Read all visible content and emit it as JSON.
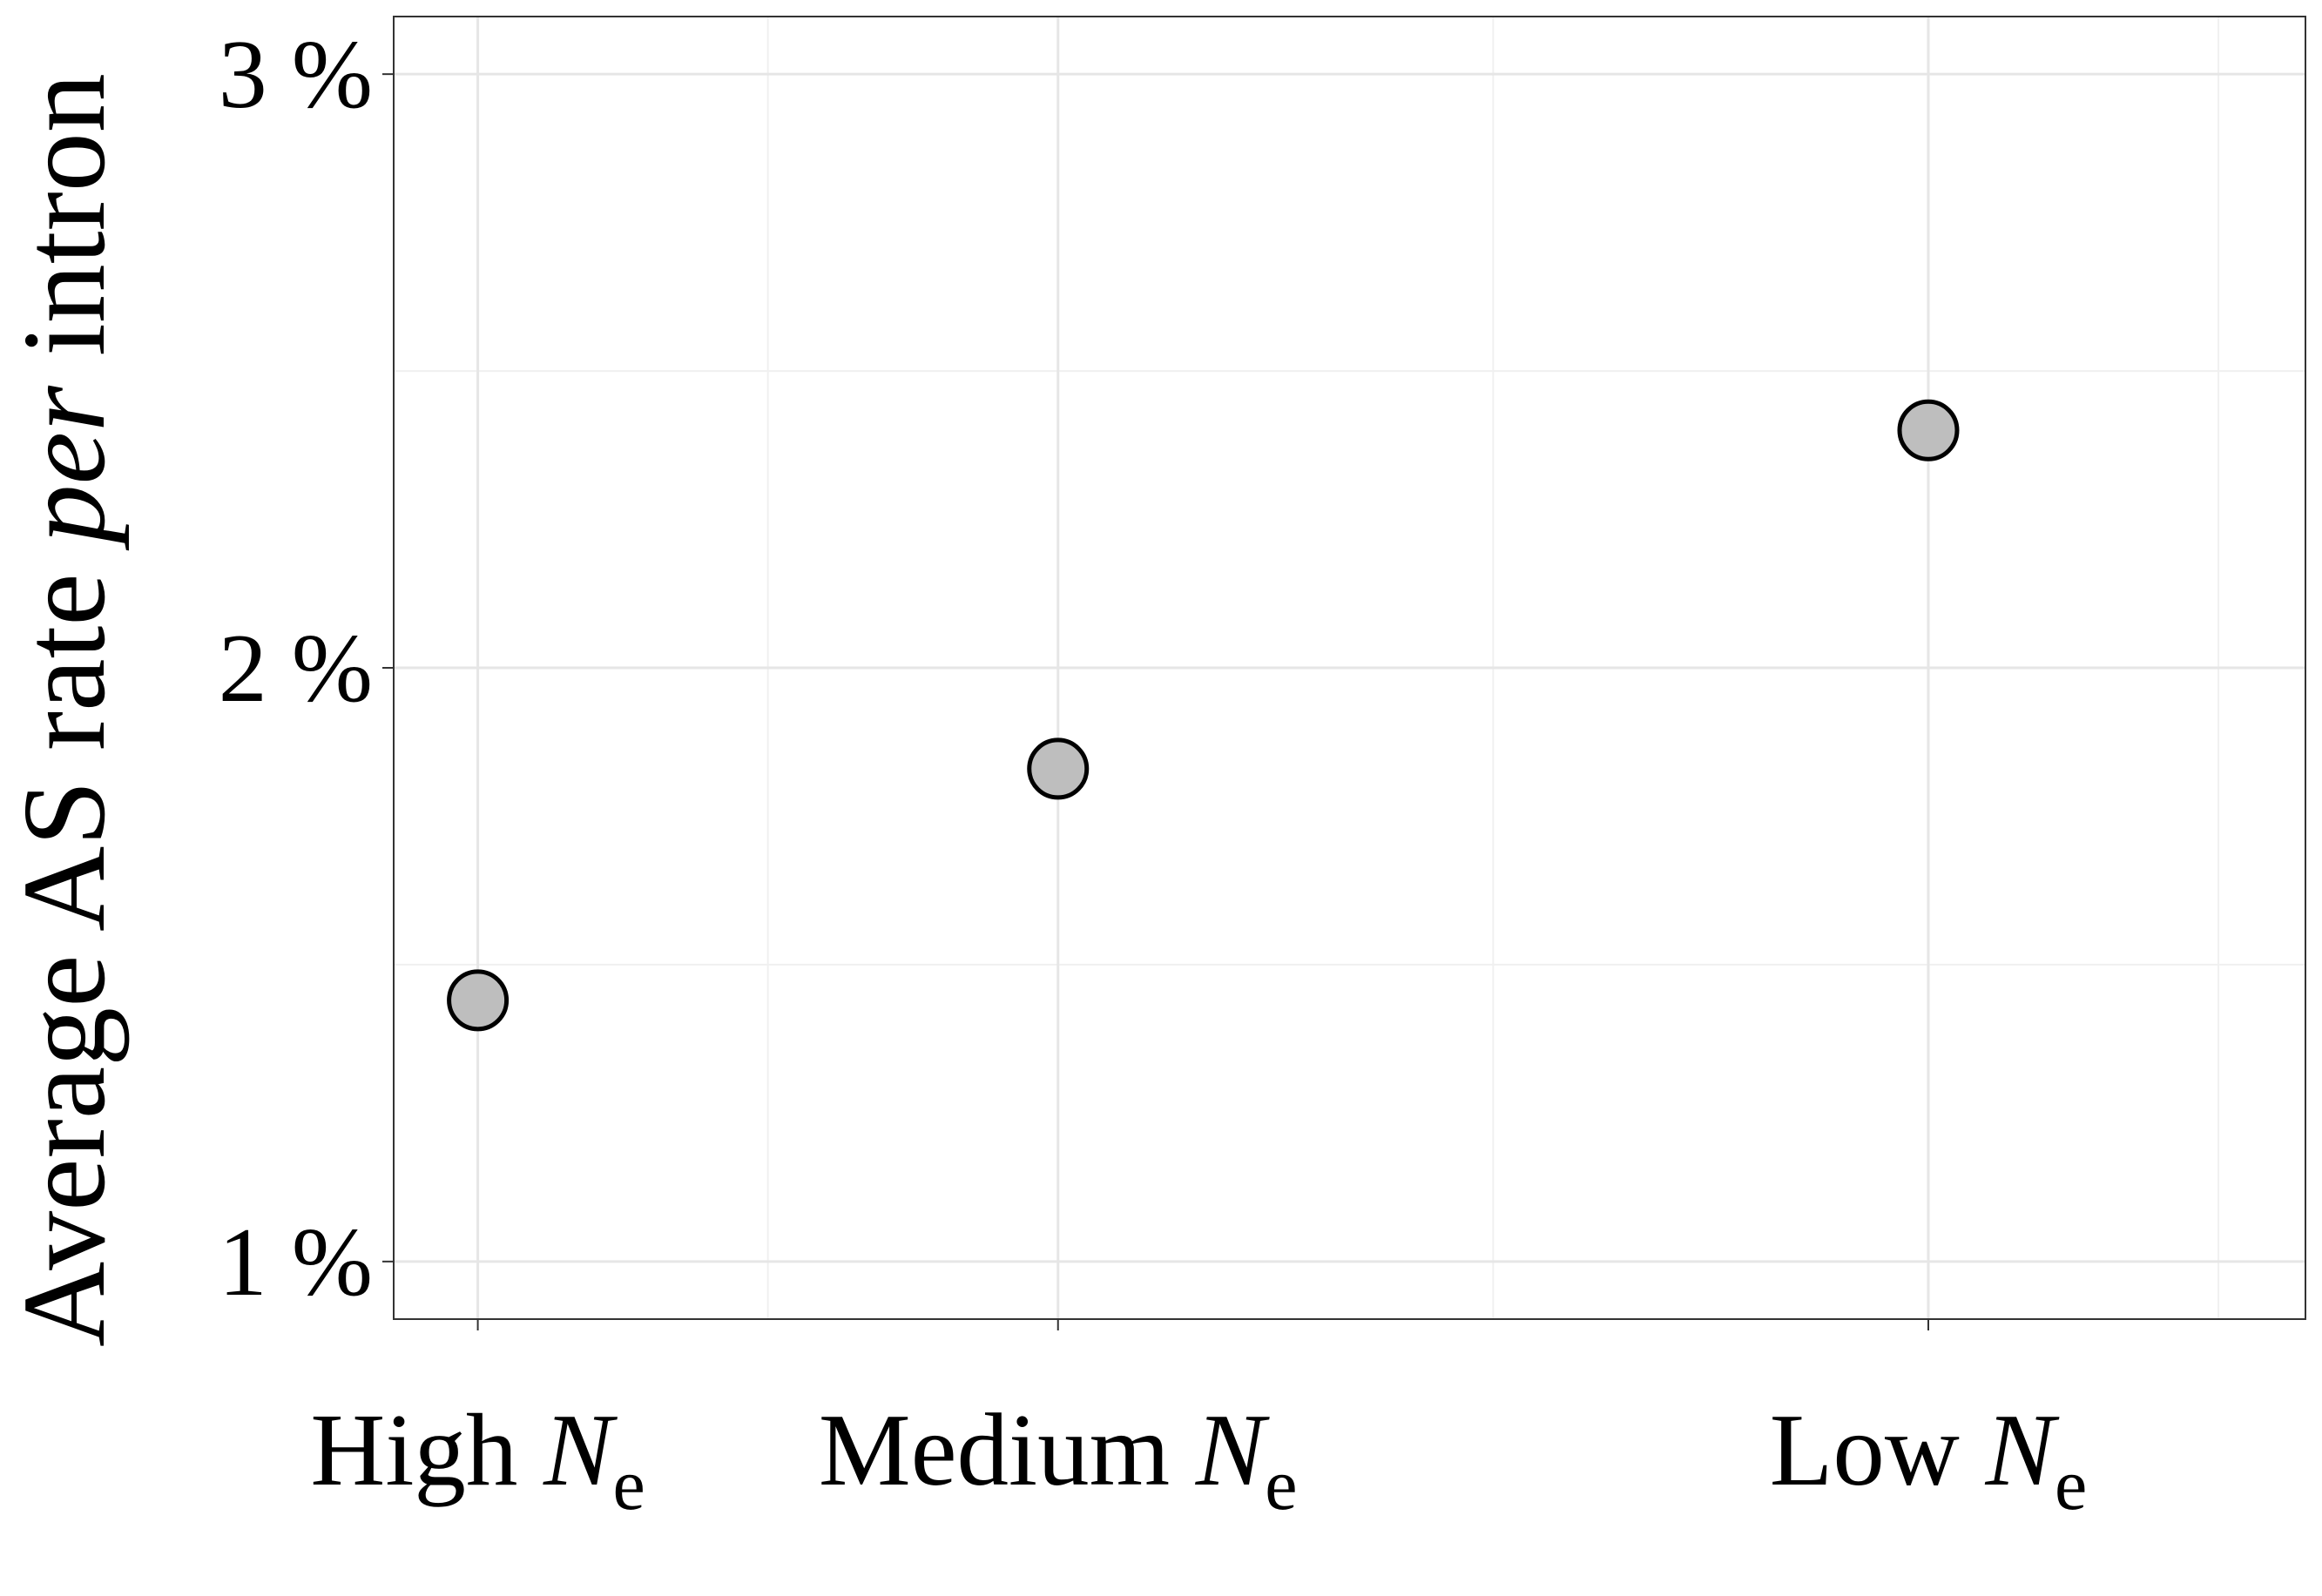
{
  "chart_data": {
    "type": "scatter",
    "y_label": [
      "Average AS rate ",
      "per",
      " intron"
    ],
    "x": [
      1,
      2,
      3.5
    ],
    "series": [
      {
        "color": "#bebebe",
        "values": [
          1.44,
          1.83,
          2.4
        ]
      }
    ],
    "xlim": [
      0.855,
      4.15
    ],
    "xticks": [
      {
        "value": 1,
        "label": [
          "High ",
          "N",
          "e"
        ]
      },
      {
        "value": 2,
        "label": [
          "Medium ",
          "N",
          "e"
        ]
      },
      {
        "value": 3.5,
        "label": [
          "Low ",
          "N",
          "e"
        ]
      }
    ],
    "x_minor_ticks": [
      1.5,
      2.75,
      4
    ],
    "ylim": [
      0.903,
      3.097
    ],
    "yticks": [
      {
        "value": 1,
        "label": "1 %"
      },
      {
        "value": 2,
        "label": "2 %"
      },
      {
        "value": 3,
        "label": "3 %"
      }
    ],
    "y_minor_ticks": [
      1.5,
      2.5
    ],
    "grid": true
  }
}
